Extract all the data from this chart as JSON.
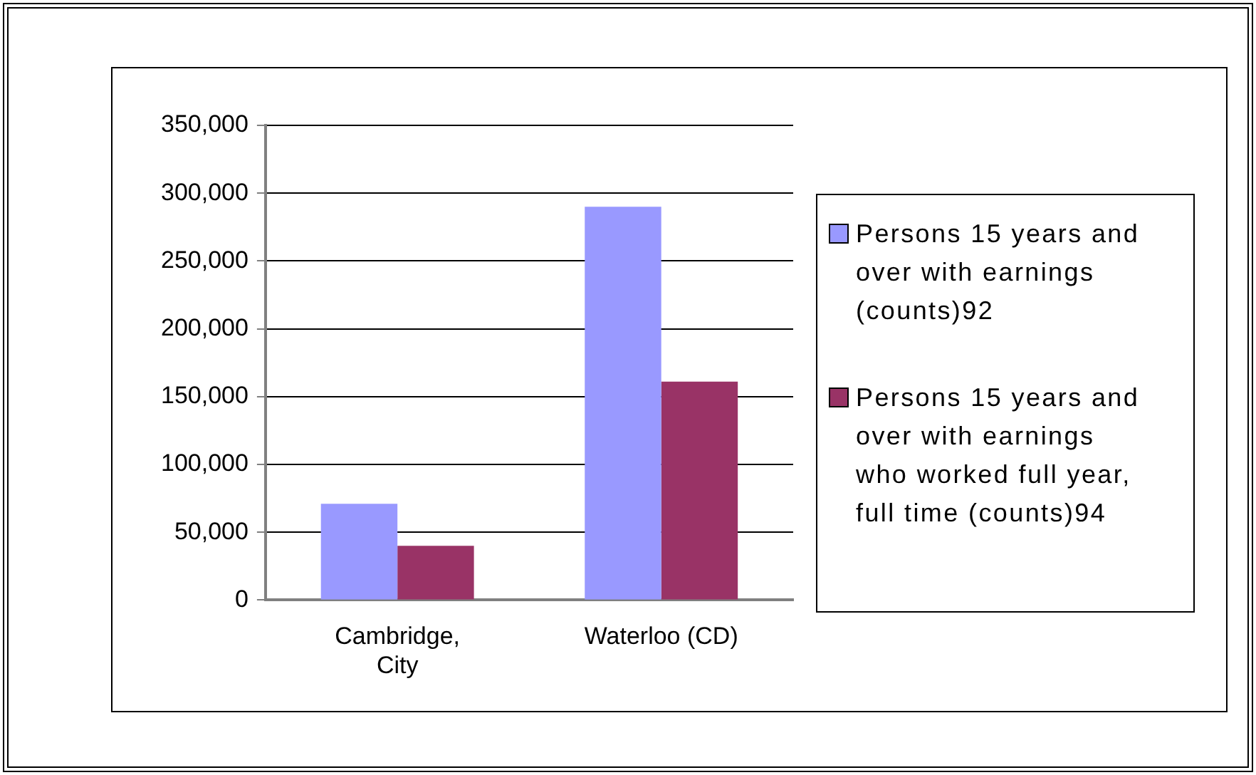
{
  "chart_data": {
    "type": "bar",
    "categories": [
      "Cambridge, City",
      "Waterloo (CD)"
    ],
    "series": [
      {
        "name": "Persons 15 years and over with earnings (counts)92",
        "color": "#9999ff",
        "values": [
          71000,
          290000
        ]
      },
      {
        "name": "Persons 15 years and over with earnings who worked full year, full time (counts)94",
        "color": "#993366",
        "values": [
          40000,
          161000
        ]
      }
    ],
    "ylim": [
      0,
      350000
    ],
    "yticks": [
      {
        "value": 0,
        "label": "0"
      },
      {
        "value": 50000,
        "label": "50,000"
      },
      {
        "value": 100000,
        "label": "100,000"
      },
      {
        "value": 150000,
        "label": "150,000"
      },
      {
        "value": 200000,
        "label": "200,000"
      },
      {
        "value": 250000,
        "label": "250,000"
      },
      {
        "value": 300000,
        "label": "300,000"
      },
      {
        "value": 350000,
        "label": "350,000"
      }
    ],
    "grid": "y",
    "legend": "right"
  }
}
